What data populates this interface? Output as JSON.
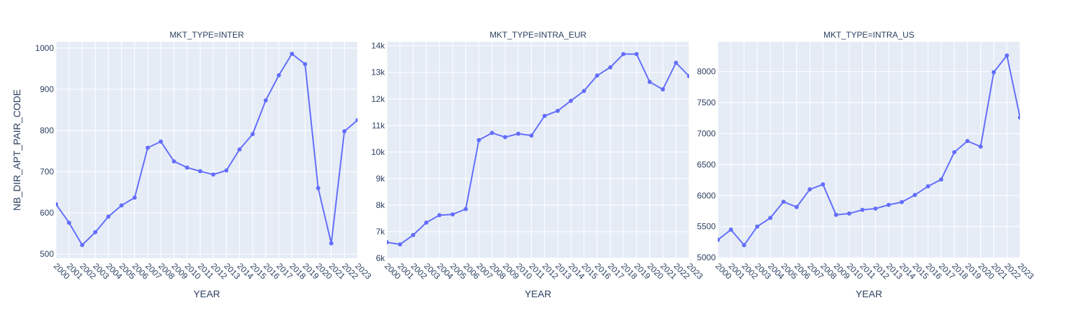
{
  "colors": {
    "plot_bg": "#e5ecf6",
    "grid": "#ffffff",
    "line": "#636efa",
    "text": "#2a3f5f"
  },
  "y_axis_title": "NB_DIR_APT_PAIR_CODE",
  "chart_data": [
    {
      "type": "line",
      "title": "MKT_TYPE=INTER",
      "xlabel": "YEAR",
      "ylabel": "NB_DIR_APT_PAIR_CODE",
      "x": [
        "2000",
        "2001",
        "2002",
        "2003",
        "2004",
        "2005",
        "2006",
        "2007",
        "2008",
        "2009",
        "2010",
        "2011",
        "2012",
        "2013",
        "2014",
        "2015",
        "2016",
        "2017",
        "2018",
        "2019",
        "2020",
        "2021",
        "2022",
        "2023"
      ],
      "values": [
        621,
        576,
        522,
        553,
        591,
        618,
        637,
        758,
        773,
        725,
        710,
        701,
        693,
        703,
        754,
        791,
        873,
        934,
        986,
        961,
        660,
        526,
        798,
        825
      ],
      "ylim": [
        490,
        1015
      ],
      "yticks": [
        500,
        600,
        700,
        800,
        900,
        1000
      ],
      "ytick_labels": [
        "500",
        "600",
        "700",
        "800",
        "900",
        "1000"
      ],
      "grid": true
    },
    {
      "type": "line",
      "title": "MKT_TYPE=INTRA_EUR",
      "xlabel": "YEAR",
      "x": [
        "2000",
        "2001",
        "2002",
        "2003",
        "2004",
        "2005",
        "2006",
        "2007",
        "2008",
        "2009",
        "2010",
        "2011",
        "2012",
        "2013",
        "2014",
        "2015",
        "2016",
        "2017",
        "2018",
        "2019",
        "2020",
        "2021",
        "2022",
        "2023"
      ],
      "values": [
        6600,
        6520,
        6870,
        7340,
        7620,
        7650,
        7850,
        10450,
        10720,
        10560,
        10690,
        10620,
        11360,
        11550,
        11930,
        12300,
        12880,
        13190,
        13690,
        13690,
        12640,
        12360,
        13360,
        12860
      ],
      "ylim": [
        6000,
        14150
      ],
      "yticks": [
        6000,
        7000,
        8000,
        9000,
        10000,
        11000,
        12000,
        13000,
        14000
      ],
      "ytick_labels": [
        "6k",
        "7k",
        "8k",
        "9k",
        "10k",
        "11k",
        "12k",
        "13k",
        "14k"
      ],
      "grid": true
    },
    {
      "type": "line",
      "title": "MKT_TYPE=INTRA_US",
      "xlabel": "YEAR",
      "x": [
        "2000",
        "2001",
        "2002",
        "2003",
        "2004",
        "2005",
        "2006",
        "2007",
        "2008",
        "2009",
        "2010",
        "2011",
        "2012",
        "2013",
        "2014",
        "2015",
        "2016",
        "2017",
        "2018",
        "2019",
        "2020",
        "2021",
        "2022",
        "2023"
      ],
      "values": [
        5285,
        5450,
        5200,
        5500,
        5640,
        5900,
        5815,
        6100,
        6180,
        5690,
        5710,
        5770,
        5790,
        5850,
        5895,
        6010,
        6150,
        6260,
        6700,
        6880,
        6790,
        7990,
        8260,
        7260
      ],
      "ylim": [
        4990,
        8480
      ],
      "yticks": [
        5000,
        5500,
        6000,
        6500,
        7000,
        7500,
        8000
      ],
      "ytick_labels": [
        "5000",
        "5500",
        "6000",
        "6500",
        "7000",
        "7500",
        "8000"
      ],
      "grid": true
    }
  ]
}
